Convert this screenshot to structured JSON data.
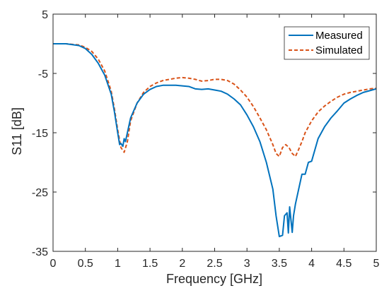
{
  "chart_data": {
    "type": "line",
    "title": "",
    "xlabel": "Frequency [GHz]",
    "ylabel": "S11 [dB]",
    "xlim": [
      0,
      5
    ],
    "ylim": [
      -35,
      5
    ],
    "xticks": [
      0,
      0.5,
      1,
      1.5,
      2,
      2.5,
      3,
      3.5,
      4,
      4.5,
      5
    ],
    "xtick_labels": [
      "0",
      "0.5",
      "1",
      "1.5",
      "2",
      "2.5",
      "3",
      "3.5",
      "4",
      "4.5",
      "5"
    ],
    "yticks": [
      5,
      -5,
      -15,
      -25,
      -35
    ],
    "ytick_labels": [
      "5",
      "-5",
      "-15",
      "-25",
      "-35"
    ],
    "grid": false,
    "legend_position": "top-right",
    "series": [
      {
        "name": "Measured",
        "color": "#0072BD",
        "style": "solid",
        "x": [
          0,
          0.2,
          0.4,
          0.5,
          0.6,
          0.7,
          0.8,
          0.9,
          0.95,
          1.0,
          1.03,
          1.05,
          1.08,
          1.1,
          1.12,
          1.15,
          1.2,
          1.3,
          1.4,
          1.5,
          1.6,
          1.7,
          1.8,
          1.9,
          2.0,
          2.1,
          2.2,
          2.3,
          2.4,
          2.5,
          2.6,
          2.7,
          2.8,
          2.9,
          3.0,
          3.1,
          3.2,
          3.3,
          3.4,
          3.45,
          3.5,
          3.55,
          3.58,
          3.62,
          3.64,
          3.66,
          3.7,
          3.72,
          3.75,
          3.8,
          3.85,
          3.9,
          3.95,
          4.0,
          4.1,
          4.2,
          4.3,
          4.4,
          4.5,
          4.6,
          4.7,
          4.8,
          4.9,
          5.0
        ],
        "y": [
          0.0,
          0.0,
          -0.3,
          -0.8,
          -1.8,
          -3.3,
          -5.3,
          -8.5,
          -11.5,
          -15.0,
          -17.0,
          -16.8,
          -17.3,
          -16.0,
          -16.5,
          -15.0,
          -12.5,
          -10.0,
          -8.5,
          -7.7,
          -7.2,
          -7.0,
          -7.0,
          -7.0,
          -7.1,
          -7.2,
          -7.6,
          -7.7,
          -7.6,
          -7.8,
          -8.0,
          -8.5,
          -9.3,
          -10.3,
          -12.0,
          -14.0,
          -16.5,
          -20.0,
          -24.5,
          -29.0,
          -32.5,
          -32.3,
          -29.0,
          -28.5,
          -31.9,
          -27.5,
          -31.8,
          -29.0,
          -27.0,
          -24.5,
          -22.0,
          -22.0,
          -20.0,
          -19.8,
          -16.0,
          -14.0,
          -12.5,
          -11.3,
          -10.0,
          -9.3,
          -8.7,
          -8.2,
          -7.9,
          -7.6
        ]
      },
      {
        "name": "Simulated",
        "color": "#D95319",
        "style": "dashed",
        "x": [
          0,
          0.2,
          0.4,
          0.5,
          0.6,
          0.7,
          0.8,
          0.9,
          0.95,
          1.0,
          1.05,
          1.1,
          1.15,
          1.2,
          1.3,
          1.4,
          1.5,
          1.6,
          1.7,
          1.8,
          1.9,
          2.0,
          2.1,
          2.2,
          2.3,
          2.4,
          2.5,
          2.6,
          2.7,
          2.8,
          2.9,
          3.0,
          3.1,
          3.2,
          3.3,
          3.4,
          3.45,
          3.5,
          3.55,
          3.6,
          3.65,
          3.7,
          3.75,
          3.8,
          3.85,
          3.9,
          4.0,
          4.1,
          4.2,
          4.3,
          4.4,
          4.5,
          4.6,
          4.7,
          4.8,
          4.9,
          5.0
        ],
        "y": [
          0.0,
          0.0,
          -0.2,
          -0.6,
          -1.3,
          -2.6,
          -4.6,
          -8.0,
          -11.0,
          -14.5,
          -17.5,
          -18.3,
          -16.5,
          -13.0,
          -10.0,
          -8.2,
          -7.2,
          -6.6,
          -6.2,
          -6.0,
          -5.8,
          -5.7,
          -5.8,
          -6.0,
          -6.3,
          -6.2,
          -6.0,
          -6.0,
          -6.2,
          -6.8,
          -7.8,
          -9.0,
          -10.6,
          -12.5,
          -14.5,
          -17.0,
          -18.5,
          -19.0,
          -17.5,
          -17.0,
          -17.5,
          -18.5,
          -19.0,
          -17.8,
          -16.5,
          -15.0,
          -13.0,
          -11.5,
          -10.5,
          -9.7,
          -9.0,
          -8.5,
          -8.2,
          -8.0,
          -7.8,
          -7.6,
          -7.5
        ]
      }
    ]
  }
}
